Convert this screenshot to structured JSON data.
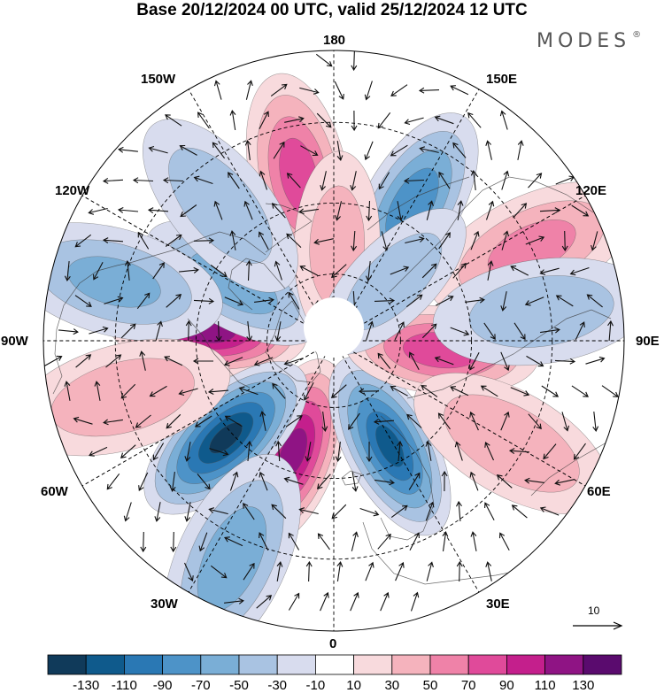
{
  "header": {
    "title": "Base 20/12/2024 00 UTC, valid 25/12/2024 12 UTC",
    "brand": "MODES",
    "brand_mark": "®"
  },
  "longitude_labels": {
    "lon_180": "180",
    "lon_150w": "150W",
    "lon_150e": "150E",
    "lon_120w": "120W",
    "lon_120e": "120E",
    "lon_90w": "90W",
    "lon_90e": "90E",
    "lon_60w": "60W",
    "lon_60e": "60E",
    "lon_30w": "30W",
    "lon_30e": "30E",
    "lon_0": "0"
  },
  "reference_vector": {
    "label": "10"
  },
  "colorbar": {
    "ticks": [
      "-130",
      "-110",
      "-90",
      "-70",
      "-50",
      "-30",
      "-10",
      "10",
      "30",
      "50",
      "70",
      "90",
      "110",
      "130"
    ],
    "colors": [
      "#103a5a",
      "#0f5a8c",
      "#2a78b4",
      "#4d93c8",
      "#7aaed6",
      "#a9c3e2",
      "#d8dcee",
      "#ffffff",
      "#f8dadd",
      "#f5b3bd",
      "#ef82a8",
      "#e04a9a",
      "#c41f8c",
      "#8f1484",
      "#5a0b6e"
    ]
  },
  "anomaly_centers": [
    {
      "name": "lon-20w-pos",
      "lon": -20,
      "lat": 55,
      "value": 110
    },
    {
      "name": "lon-95w-pos",
      "lon": -95,
      "lat": 53,
      "value": 115
    },
    {
      "name": "lon-48w-neg",
      "lon": -48,
      "lat": 48,
      "value": -125
    },
    {
      "name": "lon-28e-neg",
      "lon": 28,
      "lat": 55,
      "value": -105
    },
    {
      "name": "lon-150e-neg",
      "lon": 150,
      "lat": 45,
      "value": -75
    },
    {
      "name": "lon-168w-pos",
      "lon": -168,
      "lat": 42,
      "value": 70
    },
    {
      "name": "lon-85e-pos",
      "lon": 85,
      "lat": 58,
      "value": 75
    },
    {
      "name": "lon-120w-neg",
      "lon": -120,
      "lat": 56,
      "value": -55
    },
    {
      "name": "lon-115e-pos",
      "lon": 115,
      "lat": 30,
      "value": 45
    },
    {
      "name": "lon-60e-pos",
      "lon": 60,
      "lat": 33,
      "value": 40
    },
    {
      "name": "lon-98e-neg",
      "lon": 98,
      "lat": 32,
      "value": -35
    },
    {
      "name": "lon-25w-neg",
      "lon": -25,
      "lat": 25,
      "value": -55
    },
    {
      "name": "lon-178e-pos",
      "lon": 178,
      "lat": 62,
      "value": 30
    },
    {
      "name": "lon-135e-neg",
      "lon": 135,
      "lat": 65,
      "value": -35
    },
    {
      "name": "lon-105w-neg",
      "lon": -105,
      "lat": 28,
      "value": -45
    },
    {
      "name": "lon-140w-neg",
      "lon": -140,
      "lat": 40,
      "value": -35
    },
    {
      "name": "lon-75w-pos",
      "lon": -75,
      "lat": 30,
      "value": 35
    }
  ],
  "colors": {
    "background": "#ffffff",
    "land_outline": "#444444",
    "grid": "#000000"
  }
}
